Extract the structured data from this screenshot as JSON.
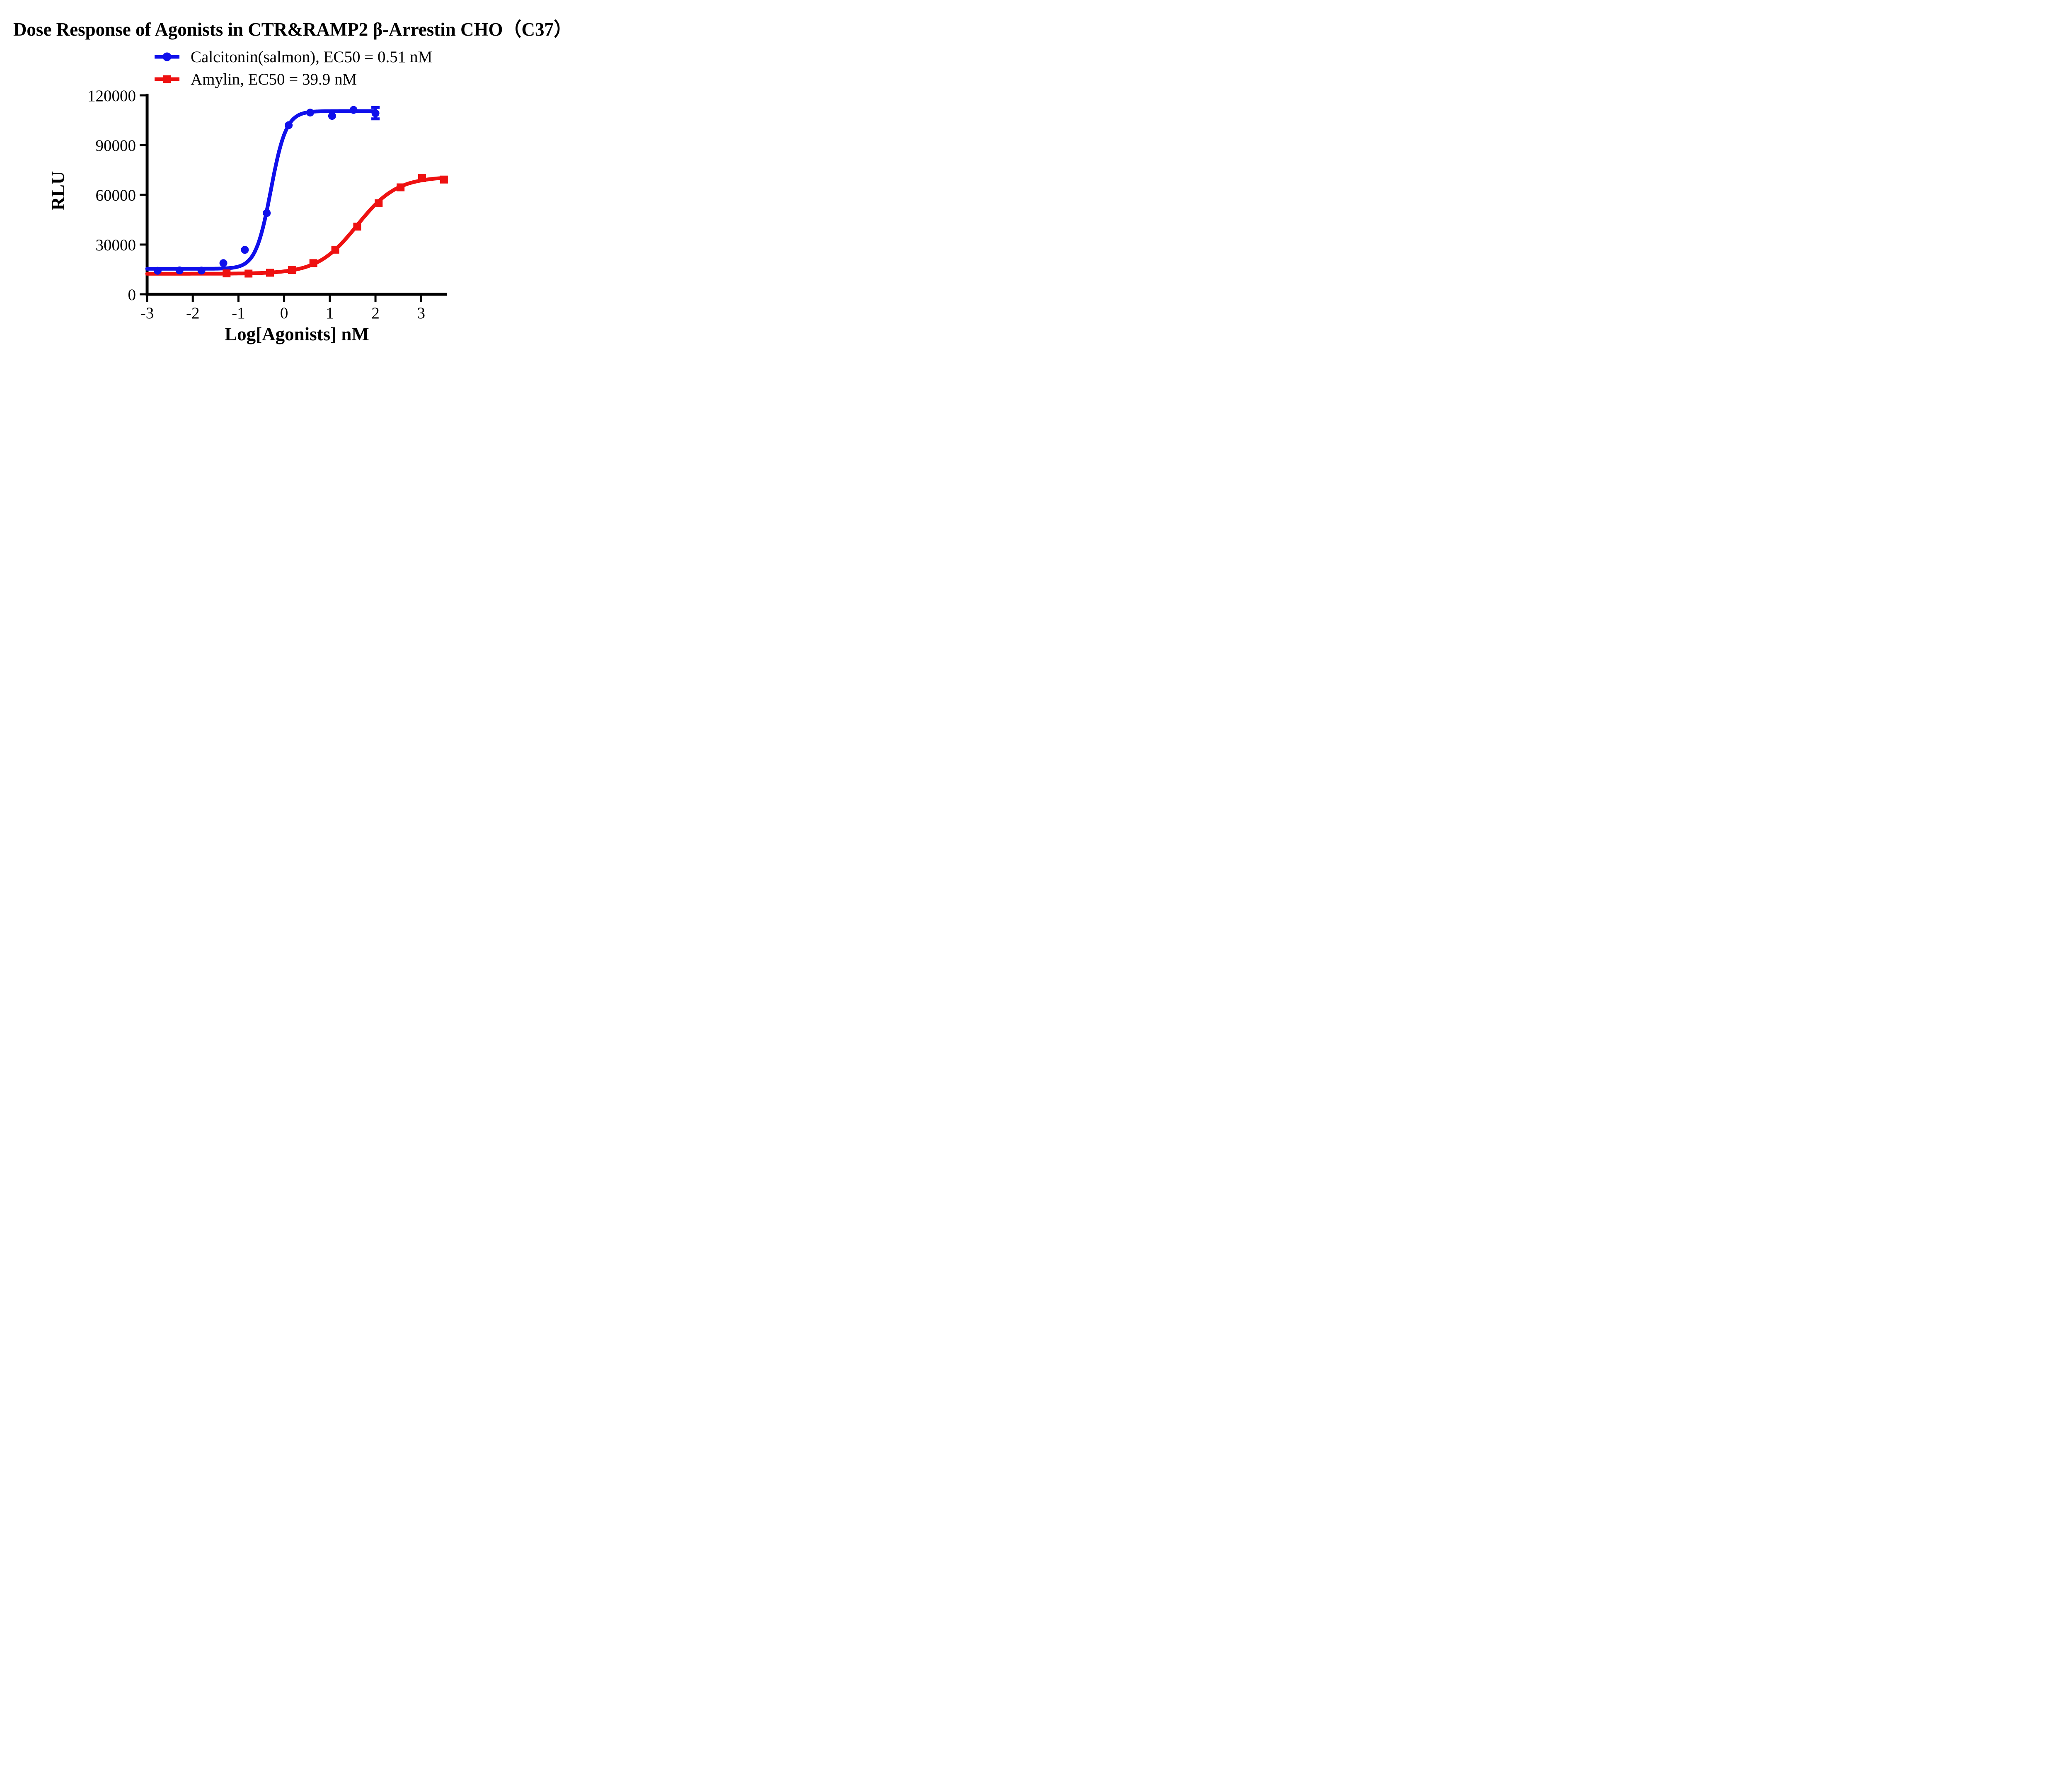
{
  "chart_data": {
    "type": "line",
    "title": "Dose Response of Agonists in CTR&RAMP2 β-Arrestin CHO（C37）",
    "xlabel": "Log[Agonists] nM",
    "ylabel": "RLU",
    "xlim": [
      -3,
      3.56
    ],
    "ylim": [
      0,
      120000
    ],
    "x_ticks": [
      -3,
      -2,
      -1,
      0,
      1,
      2,
      3
    ],
    "y_ticks": [
      0,
      30000,
      60000,
      90000,
      120000
    ],
    "grid": false,
    "legend_position": "top-left",
    "series": [
      {
        "id": "calcitonin",
        "name": "Calcitonin(salmon), EC50 = 0.51 nM",
        "ec50_nM": 0.51,
        "color": "#1010EB",
        "marker": "circle",
        "x": [
          -2.77,
          -2.29,
          -1.81,
          -1.33,
          -0.86,
          -0.38,
          0.1,
          0.57,
          1.05,
          1.52,
          2.0
        ],
        "y": [
          14200,
          14400,
          14300,
          18800,
          26800,
          49000,
          102000,
          109600,
          107600,
          111200,
          109200
        ],
        "fit": {
          "bottom": 15400,
          "top": 110500,
          "logEC50": -0.29,
          "hill": 2.6,
          "x_start": -3,
          "x_end": 2.0
        },
        "error_bars": [
          {
            "x": 2.0,
            "y": 109200,
            "plus": 3500,
            "minus": 3400
          }
        ]
      },
      {
        "id": "amylin",
        "name": "Amylin, EC50 = 39.9 nM",
        "ec50_nM": 39.9,
        "color": "#EE1111",
        "marker": "square",
        "x": [
          -1.26,
          -0.78,
          -0.31,
          0.17,
          0.64,
          1.12,
          1.6,
          2.07,
          2.55,
          3.02,
          3.5
        ],
        "y": [
          12600,
          12500,
          13000,
          14600,
          18800,
          26900,
          40800,
          54900,
          64500,
          70100,
          69200
        ],
        "fit": {
          "bottom": 12400,
          "top": 70900,
          "logEC50": 1.6,
          "hill": 1.0,
          "x_start": -3,
          "x_end": 3.5
        },
        "error_bars": []
      }
    ],
    "axis_color": "#000000"
  }
}
